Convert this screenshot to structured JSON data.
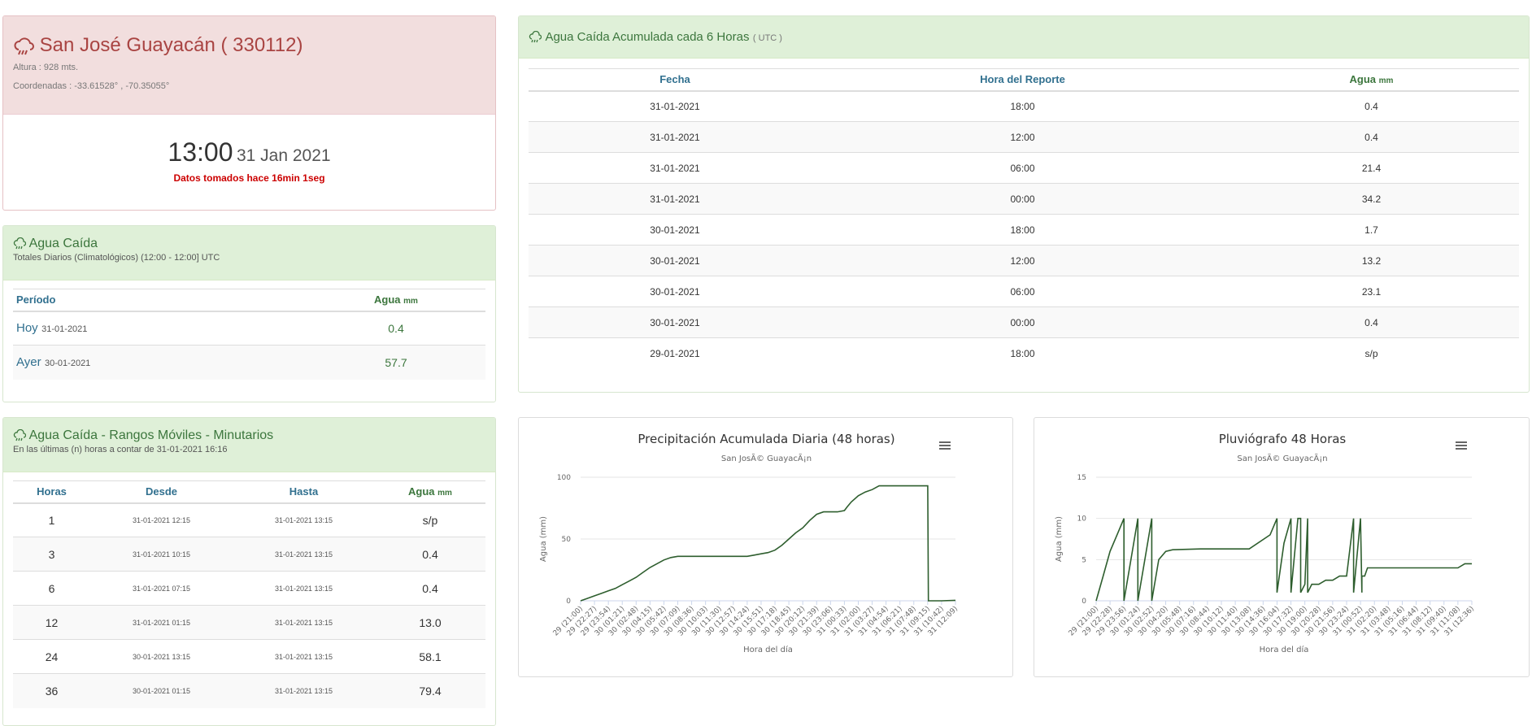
{
  "station": {
    "name": "San José Guayacán ( 330112)",
    "altura": "Altura : 928 mts.",
    "coordenadas": "Coordenadas : -33.61528° , -70.35055°",
    "time": "13:00",
    "date": "31 Jan 2021",
    "age": "Datos tomados hace 16min 1seg"
  },
  "agua_caida": {
    "title": "Agua Caída",
    "subtitle": "Totales Diarios (Climatológicos) (12:00 - 12:00] UTC",
    "col_periodo": "Período",
    "col_agua": "Agua",
    "col_unit": "mm",
    "rows": [
      {
        "label": "Hoy",
        "date": "31-01-2021",
        "value": "0.4"
      },
      {
        "label": "Ayer",
        "date": "30-01-2021",
        "value": "57.7"
      }
    ]
  },
  "rangos": {
    "title": "Agua Caída - Rangos Móviles - Minutarios",
    "subtitle": "En las últimas (n) horas a contar de 31-01-2021 16:16",
    "col_horas": "Horas",
    "col_desde": "Desde",
    "col_hasta": "Hasta",
    "col_agua": "Agua",
    "col_unit": "mm",
    "rows": [
      {
        "horas": "1",
        "desde": "31-01-2021 12:15",
        "hasta": "31-01-2021 13:15",
        "agua": "s/p"
      },
      {
        "horas": "3",
        "desde": "31-01-2021 10:15",
        "hasta": "31-01-2021 13:15",
        "agua": "0.4"
      },
      {
        "horas": "6",
        "desde": "31-01-2021 07:15",
        "hasta": "31-01-2021 13:15",
        "agua": "0.4"
      },
      {
        "horas": "12",
        "desde": "31-01-2021 01:15",
        "hasta": "31-01-2021 13:15",
        "agua": "13.0"
      },
      {
        "horas": "24",
        "desde": "30-01-2021 13:15",
        "hasta": "31-01-2021 13:15",
        "agua": "58.1"
      },
      {
        "horas": "36",
        "desde": "30-01-2021 01:15",
        "hasta": "31-01-2021 13:15",
        "agua": "79.4"
      }
    ]
  },
  "seis_horas": {
    "title": "Agua Caída Acumulada cada 6 Horas",
    "utc": "( UTC )",
    "col_fecha": "Fecha",
    "col_hora": "Hora del Reporte",
    "col_agua": "Agua",
    "col_unit": "mm",
    "rows": [
      {
        "fecha": "31-01-2021",
        "hora": "18:00",
        "agua": "0.4"
      },
      {
        "fecha": "31-01-2021",
        "hora": "12:00",
        "agua": "0.4"
      },
      {
        "fecha": "31-01-2021",
        "hora": "06:00",
        "agua": "21.4"
      },
      {
        "fecha": "31-01-2021",
        "hora": "00:00",
        "agua": "34.2"
      },
      {
        "fecha": "30-01-2021",
        "hora": "18:00",
        "agua": "1.7"
      },
      {
        "fecha": "30-01-2021",
        "hora": "12:00",
        "agua": "13.2"
      },
      {
        "fecha": "30-01-2021",
        "hora": "06:00",
        "agua": "23.1"
      },
      {
        "fecha": "30-01-2021",
        "hora": "00:00",
        "agua": "0.4"
      },
      {
        "fecha": "29-01-2021",
        "hora": "18:00",
        "agua": "s/p"
      }
    ]
  },
  "colors": {
    "line": "#2e5e2e",
    "header_green": "#dff0d8",
    "header_red": "#f2dede",
    "title_red": "#a94442",
    "title_green": "#3c763d",
    "alert_red": "#cc0000"
  },
  "chart_data": [
    {
      "type": "line",
      "title": "Precipitación Acumulada Diaria (48 horas)",
      "subtitle": "San JosÃ© GuayacÃ¡n",
      "xlabel": "Hora del día",
      "ylabel": "Agua (mm)",
      "ylim": [
        0,
        100
      ],
      "yticks": [
        "0",
        "50",
        "100"
      ],
      "xticks": [
        "29 (21:00)",
        "29 (22:27)",
        "29 (23:54)",
        "30 (01:21)",
        "30 (02:48)",
        "30 (04:15)",
        "30 (05:42)",
        "30 (07:09)",
        "30 (08:36)",
        "30 (10:03)",
        "30 (11:30)",
        "30 (12:57)",
        "30 (14:24)",
        "30 (15:51)",
        "30 (17:18)",
        "30 (18:45)",
        "30 (20:12)",
        "30 (21:39)",
        "30 (23:06)",
        "31 (00:33)",
        "31 (02:00)",
        "31 (03:27)",
        "31 (04:54)",
        "31 (06:21)",
        "31 (07:48)",
        "31 (09:15)",
        "31 (10:42)",
        "31 (12:09)"
      ],
      "grid": true,
      "menu_icon": "hamburger-menu-icon",
      "series": [
        {
          "x": [
            0,
            0.5,
            1,
            1.5,
            2,
            2.5,
            3,
            3.5,
            4,
            4.5,
            5,
            5.5,
            6,
            6.5,
            7,
            8,
            9,
            10,
            11,
            12,
            12.5,
            13,
            13.5,
            14,
            14.5,
            15,
            15.5,
            16,
            16.5,
            17,
            17.5,
            18,
            18.5,
            19,
            19.2,
            19.5,
            20,
            20.5,
            21,
            21.5,
            22,
            23,
            24,
            25,
            25.05,
            26,
            27
          ],
          "y": [
            0,
            2,
            4,
            6,
            8,
            10,
            13,
            16,
            19,
            23,
            27,
            30,
            33,
            35,
            36,
            36,
            36,
            36,
            36,
            36,
            37,
            38,
            39,
            41,
            45,
            50,
            55,
            59,
            65,
            70,
            72,
            72,
            72,
            73,
            76,
            80,
            85,
            88,
            90,
            93,
            93,
            93,
            93,
            93,
            0,
            0,
            0.4
          ]
        }
      ]
    },
    {
      "type": "line",
      "title": "Pluviógrafo 48 Horas",
      "subtitle": "San JosÃ© GuayacÃ¡n",
      "xlabel": "Hora del día",
      "ylabel": "Agua (mm)",
      "ylim": [
        0,
        15
      ],
      "yticks": [
        "0",
        "5",
        "10",
        "15"
      ],
      "xticks": [
        "29 (21:00)",
        "29 (22:28)",
        "29 (23:56)",
        "30 (01:24)",
        "30 (02:52)",
        "30 (04:20)",
        "30 (05:48)",
        "30 (07:16)",
        "30 (08:44)",
        "30 (10:12)",
        "30 (11:40)",
        "30 (13:08)",
        "30 (14:36)",
        "30 (16:04)",
        "30 (17:32)",
        "30 (19:00)",
        "30 (20:28)",
        "30 (21:56)",
        "30 (23:24)",
        "31 (00:52)",
        "31 (02:20)",
        "31 (03:48)",
        "31 (05:16)",
        "31 (06:44)",
        "31 (08:12)",
        "31 (09:40)",
        "31 (11:08)",
        "31 (12:36)"
      ],
      "grid": true,
      "menu_icon": "hamburger-menu-icon",
      "series": [
        {
          "x": [
            0,
            0.5,
            1,
            1.5,
            2,
            2,
            2.5,
            3,
            3,
            3.5,
            4,
            4,
            4.5,
            5,
            5.5,
            7.5,
            11,
            12.5,
            13,
            13,
            13.5,
            14,
            14,
            14.5,
            14.7,
            14.7,
            15,
            15.2,
            15.2,
            15.5,
            16,
            16.5,
            17,
            17.5,
            18,
            18.5,
            18.5,
            19,
            19.1,
            19.1,
            19.3,
            19.5,
            20,
            26,
            26.5,
            27
          ],
          "y": [
            0,
            3,
            6,
            8,
            10,
            0,
            5,
            10,
            0,
            5,
            10,
            0,
            5,
            6,
            6.2,
            6.3,
            6.3,
            8,
            10,
            1,
            7,
            10,
            1,
            10,
            10,
            1,
            2,
            10,
            1,
            2,
            2,
            2.5,
            2.5,
            3,
            3,
            10,
            1,
            10,
            1,
            3,
            3,
            4,
            4,
            4,
            4.5,
            4.5
          ]
        }
      ]
    }
  ]
}
